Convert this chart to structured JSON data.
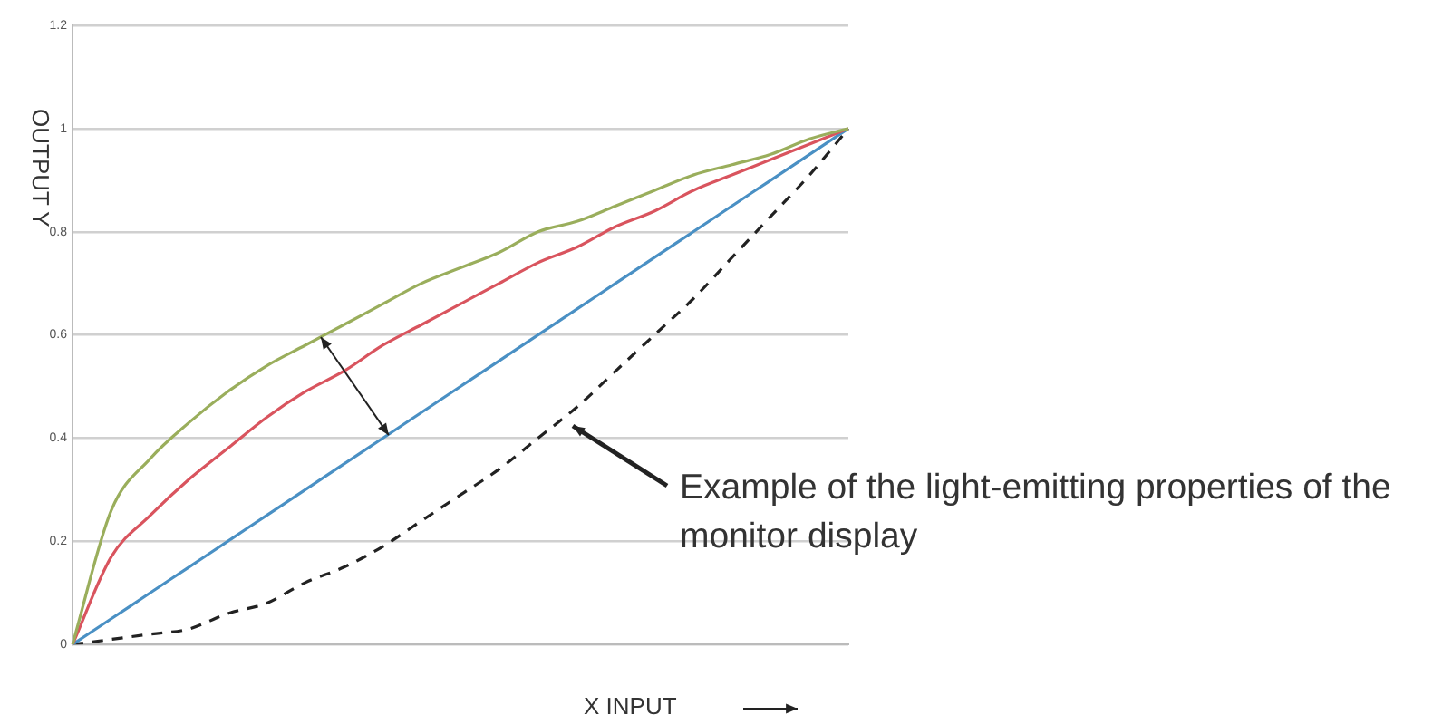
{
  "chart_data": {
    "type": "line",
    "xlabel": "X INPUT",
    "ylabel": "OUTPUT Y",
    "annotations": [
      "Example of the light-emitting properties of the monitor display"
    ],
    "categories": [
      null,
      null,
      null,
      null,
      null,
      null,
      null,
      null,
      null,
      null,
      null,
      null,
      null,
      null,
      null,
      null,
      null,
      null,
      null,
      null,
      null
    ],
    "series": [
      {
        "color": "#9aae5c",
        "values": [
          0,
          0.26,
          0.36,
          0.43,
          0.49,
          0.54,
          0.58,
          0.62,
          0.66,
          0.7,
          0.73,
          0.76,
          0.8,
          0.82,
          0.85,
          0.88,
          0.91,
          0.93,
          0.95,
          0.98,
          1
        ]
      },
      {
        "color": "#d9545e",
        "values": [
          0,
          0.17,
          0.25,
          0.32,
          0.38,
          0.44,
          0.49,
          0.53,
          0.58,
          0.62,
          0.66,
          0.7,
          0.74,
          0.77,
          0.81,
          0.84,
          0.88,
          0.91,
          0.94,
          0.97,
          1
        ]
      },
      {
        "color": "#4a90c4",
        "values": [
          0,
          0.05,
          0.1,
          0.15,
          0.2,
          0.25,
          0.3,
          0.35,
          0.4,
          0.45,
          0.5,
          0.55,
          0.6,
          0.65,
          0.7,
          0.75,
          0.8,
          0.85,
          0.9,
          0.95,
          1
        ]
      },
      {
        "color": "#222222",
        "line_style": "dashed",
        "values": [
          0,
          0.01,
          0.02,
          0.03,
          0.06,
          0.08,
          0.12,
          0.15,
          0.19,
          0.24,
          0.29,
          0.34,
          0.4,
          0.46,
          0.53,
          0.6,
          0.67,
          0.75,
          0.83,
          0.91,
          1
        ]
      }
    ],
    "ylim": [
      0,
      1.2
    ],
    "yticks": [
      0,
      0.2,
      0.4,
      0.6,
      0.8,
      1,
      1.2
    ],
    "grid": "y",
    "legend": false,
    "marker": "none"
  }
}
